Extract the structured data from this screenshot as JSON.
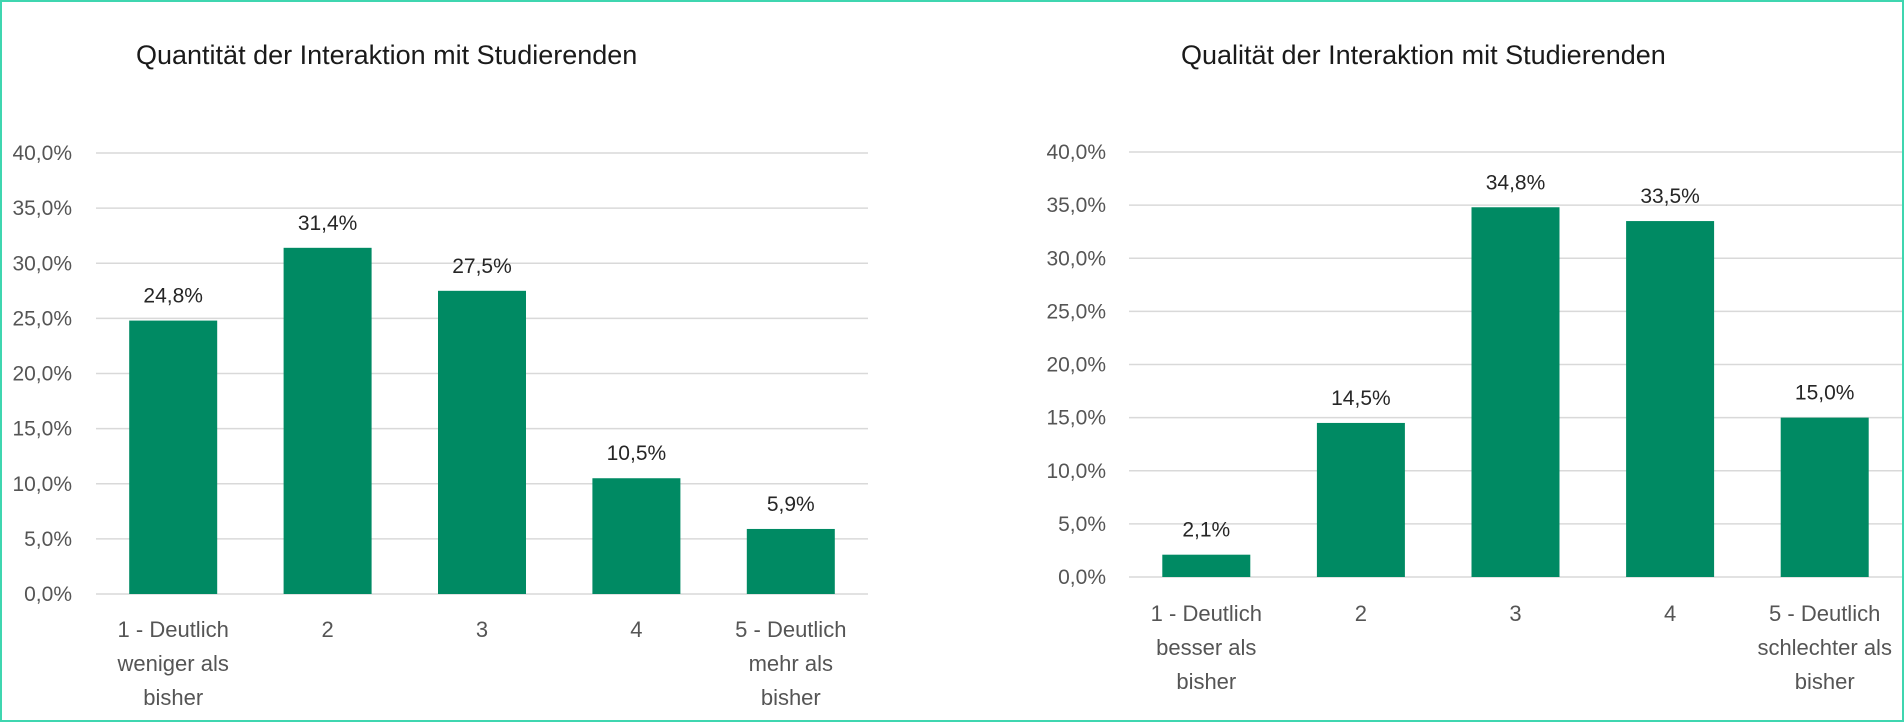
{
  "chart_data": [
    {
      "type": "bar",
      "title": "Quantität der Interaktion mit Studierenden",
      "categories": [
        "1 - Deutlich weniger als bisher",
        "2",
        "3",
        "4",
        "5 - Deutlich mehr als bisher"
      ],
      "category_lines": [
        [
          "1 - Deutlich",
          "weniger als",
          "bisher"
        ],
        [
          "2"
        ],
        [
          "3"
        ],
        [
          "4"
        ],
        [
          "5 - Deutlich",
          "mehr als",
          "bisher"
        ]
      ],
      "values": [
        24.8,
        31.4,
        27.5,
        10.5,
        5.9
      ],
      "value_labels": [
        "24,8%",
        "31,4%",
        "27,5%",
        "10,5%",
        "5,9%"
      ],
      "ylim": [
        0,
        40
      ],
      "yticks": [
        0,
        5,
        10,
        15,
        20,
        25,
        30,
        35,
        40
      ],
      "ytick_labels": [
        "0,0%",
        "5,0%",
        "10,0%",
        "15,0%",
        "20,0%",
        "25,0%",
        "30,0%",
        "35,0%",
        "40,0%"
      ],
      "xlabel": "",
      "ylabel": "",
      "grid": true,
      "bar_color": "#008a63",
      "grid_color": "#d9d9d9"
    },
    {
      "type": "bar",
      "title": "Qualität der Interaktion mit Studierenden",
      "categories": [
        "1 - Deutlich besser als bisher",
        "2",
        "3",
        "4",
        "5 - Deutlich schlechter als bisher"
      ],
      "category_lines": [
        [
          "1 - Deutlich",
          "besser als",
          "bisher"
        ],
        [
          "2"
        ],
        [
          "3"
        ],
        [
          "4"
        ],
        [
          "5 - Deutlich",
          "schlechter als",
          "bisher"
        ]
      ],
      "values": [
        2.1,
        14.5,
        34.8,
        33.5,
        15.0
      ],
      "value_labels": [
        "2,1%",
        "14,5%",
        "34,8%",
        "33,5%",
        "15,0%"
      ],
      "ylim": [
        0,
        40
      ],
      "yticks": [
        0,
        5,
        10,
        15,
        20,
        25,
        30,
        35,
        40
      ],
      "ytick_labels": [
        "0,0%",
        "5,0%",
        "10,0%",
        "15,0%",
        "20,0%",
        "25,0%",
        "30,0%",
        "35,0%",
        "40,0%"
      ],
      "xlabel": "",
      "ylabel": "",
      "grid": true,
      "bar_color": "#008a63",
      "grid_color": "#d9d9d9"
    }
  ]
}
